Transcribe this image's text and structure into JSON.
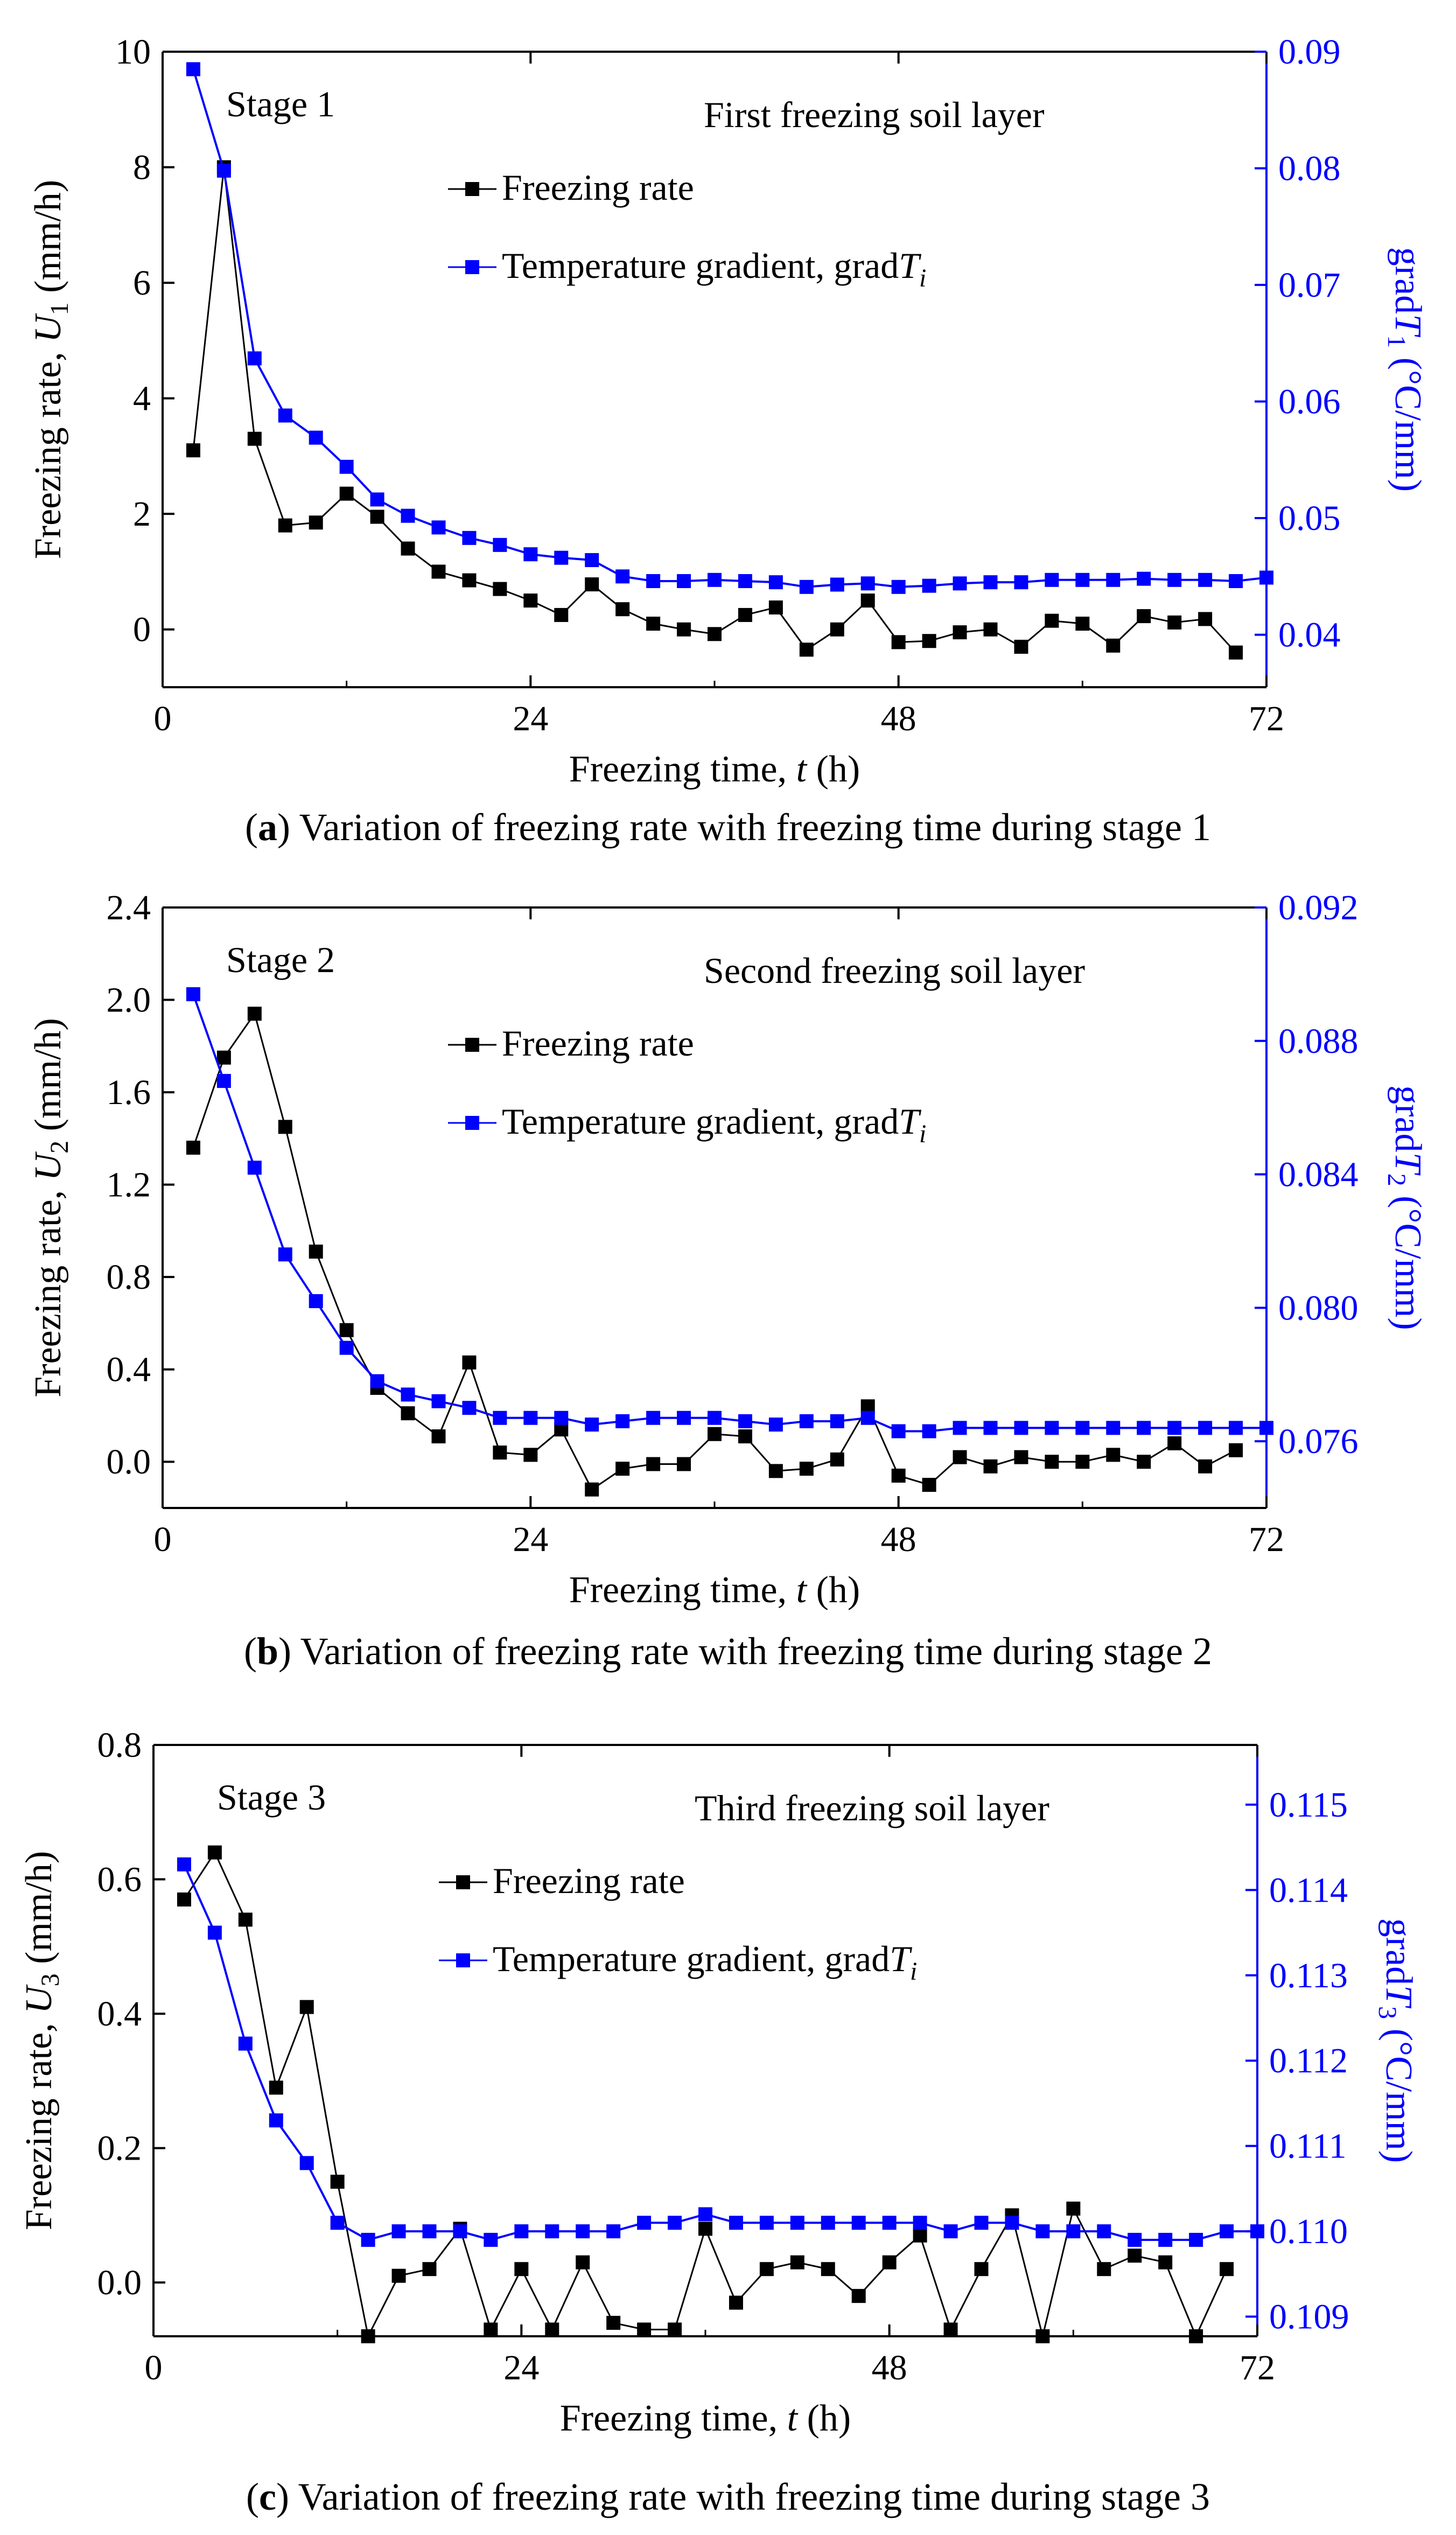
{
  "chart_data": [
    {
      "type": "line",
      "stage_label": "Stage 1",
      "layer_label": "First freezing soil layer",
      "caption_letter": "a",
      "caption_text": "Variation of freezing rate with freezing time during stage 1",
      "xlabel": "Freezing time, t (h)",
      "ylabel": "Freezing rate, U1 (mm/h)",
      "y2label": "gradT1 (°C/mm)",
      "xlim": [
        0,
        72
      ],
      "ylim": [
        -1,
        10
      ],
      "y2lim": [
        0.0355,
        0.09
      ],
      "xticks": [
        "0",
        "24",
        "48",
        "72"
      ],
      "yticks": [
        "0",
        "2",
        "4",
        "6",
        "8",
        "10"
      ],
      "y2ticks": [
        "0.04",
        "0.05",
        "0.06",
        "0.07",
        "0.08",
        "0.09"
      ],
      "legend": [
        "Freezing rate",
        "Temperature gradient, gradTi"
      ],
      "x": [
        2,
        4,
        6,
        8,
        10,
        12,
        14,
        16,
        18,
        20,
        22,
        24,
        26,
        28,
        30,
        32,
        34,
        36,
        38,
        40,
        42,
        44,
        46,
        48,
        50,
        52,
        54,
        56,
        58,
        60,
        62,
        64,
        66,
        68,
        70,
        72
      ],
      "series": [
        {
          "name": "Freezing rate",
          "axis": "left",
          "values": [
            3.1,
            8.0,
            3.3,
            1.8,
            1.85,
            2.35,
            1.95,
            1.4,
            1.0,
            0.85,
            0.7,
            0.5,
            0.25,
            0.78,
            0.35,
            0.1,
            0.0,
            -0.08,
            0.25,
            0.38,
            -0.35,
            0.0,
            0.5,
            -0.22,
            -0.2,
            -0.05,
            0.0,
            -0.3,
            0.15,
            0.1,
            -0.28,
            0.23,
            0.12,
            0.18,
            -0.4,
            null
          ]
        },
        {
          "name": "Temperature gradient, gradTi",
          "axis": "right",
          "values": [
            0.0885,
            0.0798,
            0.0637,
            0.0588,
            0.0569,
            0.0544,
            0.0516,
            0.0502,
            0.0492,
            0.0483,
            0.0477,
            0.0469,
            0.0466,
            0.0464,
            0.045,
            0.0446,
            0.0446,
            0.0447,
            0.0446,
            0.0445,
            0.0441,
            0.0443,
            0.0444,
            0.0441,
            0.0442,
            0.0444,
            0.0445,
            0.0445,
            0.0447,
            0.0447,
            0.0447,
            0.0448,
            0.0447,
            0.0447,
            0.0446,
            0.0449
          ]
        }
      ]
    },
    {
      "type": "line",
      "stage_label": "Stage 2",
      "layer_label": "Second freezing soil layer",
      "caption_letter": "b",
      "caption_text": "Variation of freezing rate with freezing time during stage 2",
      "xlabel": "Freezing time, t (h)",
      "ylabel": "Freezing rate, U2 (mm/h)",
      "y2label": "gradT2 (°C/mm)",
      "xlim": [
        0,
        72
      ],
      "ylim": [
        -0.2,
        2.4
      ],
      "y2lim": [
        0.074,
        0.092
      ],
      "xticks": [
        "0",
        "24",
        "48",
        "72"
      ],
      "yticks": [
        "0.0",
        "0.4",
        "0.8",
        "1.2",
        "1.6",
        "2.0",
        "2.4"
      ],
      "y2ticks": [
        "0.076",
        "0.080",
        "0.084",
        "0.088",
        "0.092"
      ],
      "legend": [
        "Freezing rate",
        "Temperature gradient, gradTi"
      ],
      "x": [
        2,
        4,
        6,
        8,
        10,
        12,
        14,
        16,
        18,
        20,
        22,
        24,
        26,
        28,
        30,
        32,
        34,
        36,
        38,
        40,
        42,
        44,
        46,
        48,
        50,
        52,
        54,
        56,
        58,
        60,
        62,
        64,
        66,
        68,
        70,
        72
      ],
      "series": [
        {
          "name": "Freezing rate",
          "axis": "left",
          "values": [
            1.36,
            1.75,
            1.94,
            1.45,
            0.91,
            0.57,
            0.32,
            0.21,
            0.11,
            0.43,
            0.04,
            0.03,
            0.14,
            -0.12,
            -0.03,
            -0.01,
            -0.01,
            0.12,
            0.11,
            -0.04,
            -0.03,
            0.01,
            0.24,
            -0.06,
            -0.1,
            0.02,
            -0.02,
            0.02,
            0.0,
            0.0,
            0.03,
            0.0,
            0.08,
            -0.02,
            0.05,
            null
          ]
        },
        {
          "name": "Temperature gradient, gradTi",
          "axis": "right",
          "values": [
            0.0894,
            0.0868,
            0.0842,
            0.0816,
            0.0802,
            0.0788,
            0.0778,
            0.0774,
            0.0772,
            0.077,
            0.0767,
            0.0767,
            0.0767,
            0.0765,
            0.0766,
            0.0767,
            0.0767,
            0.0767,
            0.0766,
            0.0765,
            0.0766,
            0.0766,
            0.0767,
            0.0763,
            0.0763,
            0.0764,
            0.0764,
            0.0764,
            0.0764,
            0.0764,
            0.0764,
            0.0764,
            0.0764,
            0.0764,
            0.0764,
            0.0764
          ]
        }
      ]
    },
    {
      "type": "line",
      "stage_label": "Stage 3",
      "layer_label": "Third freezing soil layer",
      "caption_letter": "c",
      "caption_text": "Variation of freezing rate with freezing time during stage 3",
      "xlabel": "Freezing time, t (h)",
      "ylabel": "Freezing rate, U3 (mm/h)",
      "y2label": "gradT3 (°C/mm)",
      "xlim": [
        0,
        72
      ],
      "ylim": [
        -0.08,
        0.8
      ],
      "y2lim": [
        0.10877,
        0.1157
      ],
      "xticks": [
        "0",
        "24",
        "48",
        "72"
      ],
      "yticks": [
        "0.0",
        "0.2",
        "0.4",
        "0.6",
        "0.8"
      ],
      "y2ticks": [
        "0.109",
        "0.110",
        "0.111",
        "0.112",
        "0.113",
        "0.114",
        "0.115"
      ],
      "legend": [
        "Freezing rate",
        "Temperature gradient, gradTi"
      ],
      "x": [
        2,
        4,
        6,
        8,
        10,
        12,
        14,
        16,
        18,
        20,
        22,
        24,
        26,
        28,
        30,
        32,
        34,
        36,
        38,
        40,
        42,
        44,
        46,
        48,
        50,
        52,
        54,
        56,
        58,
        60,
        62,
        64,
        66,
        68,
        70,
        72
      ],
      "series": [
        {
          "name": "Freezing rate",
          "axis": "left",
          "values": [
            0.57,
            0.64,
            0.54,
            0.29,
            0.41,
            0.15,
            -0.08,
            0.01,
            0.02,
            0.08,
            -0.07,
            0.02,
            -0.07,
            0.03,
            -0.06,
            -0.07,
            -0.07,
            0.08,
            -0.03,
            0.02,
            0.03,
            0.02,
            -0.02,
            0.03,
            0.07,
            -0.07,
            0.02,
            0.1,
            -0.08,
            0.11,
            0.02,
            0.04,
            0.03,
            -0.1,
            0.02,
            null
          ]
        },
        {
          "name": "Temperature gradient, gradTi",
          "axis": "right",
          "values": [
            0.1143,
            0.1135,
            0.1122,
            0.1113,
            0.1108,
            0.1101,
            0.1099,
            0.11,
            0.11,
            0.11,
            0.1099,
            0.11,
            0.11,
            0.11,
            0.11,
            0.1101,
            0.1101,
            0.1102,
            0.1101,
            0.1101,
            0.1101,
            0.1101,
            0.1101,
            0.1101,
            0.1101,
            0.11,
            0.1101,
            0.1101,
            0.11,
            0.11,
            0.11,
            0.1099,
            0.1099,
            0.1099,
            0.11,
            0.11
          ]
        }
      ]
    }
  ],
  "colors": {
    "black_series": "#000000",
    "blue_series": "#0000ff",
    "axis": "#000000",
    "right_axis": "#0000ff"
  }
}
